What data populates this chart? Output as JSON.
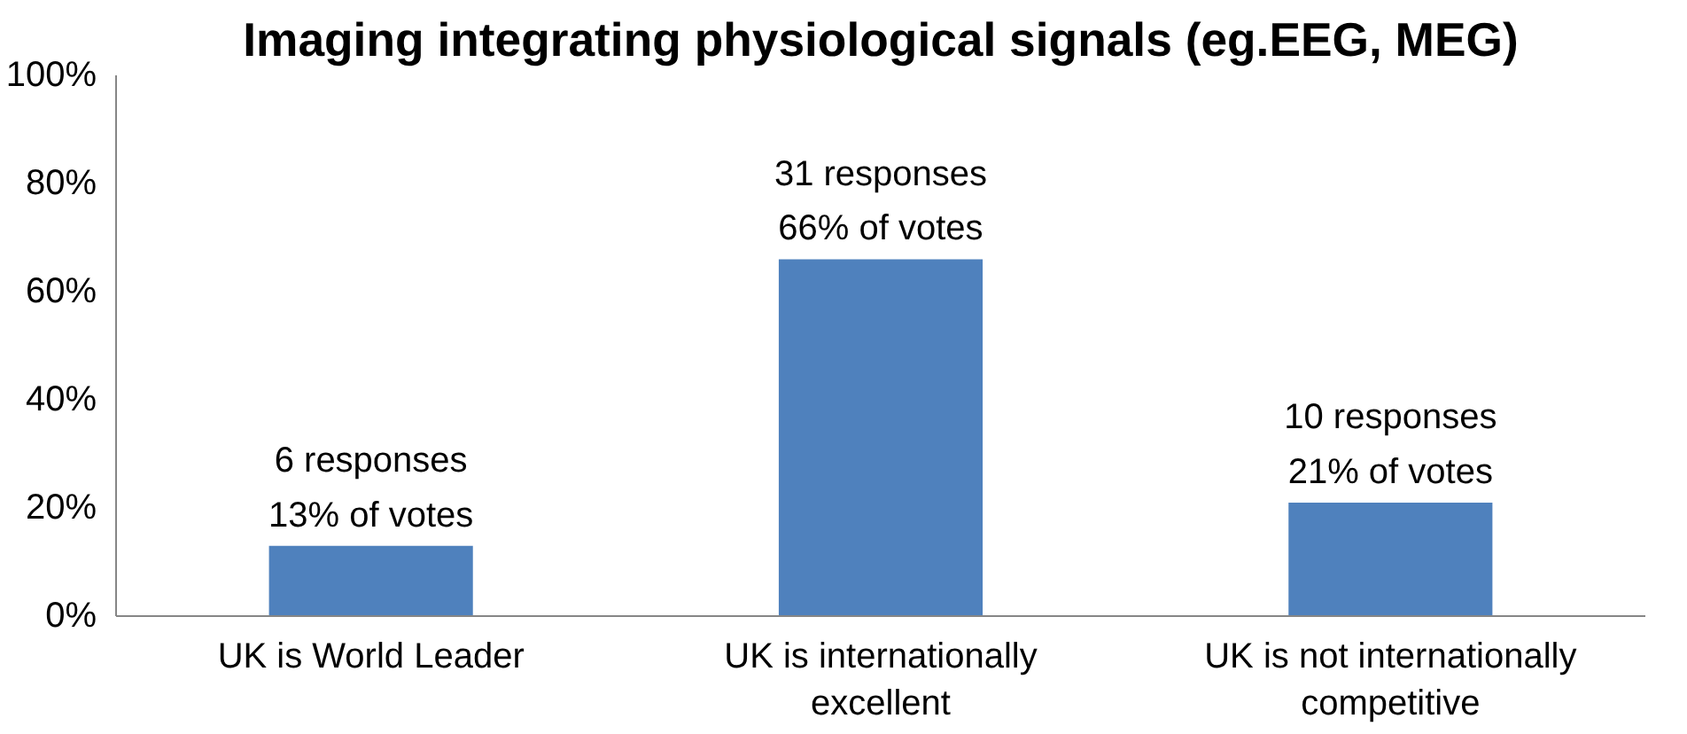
{
  "chart_data": {
    "type": "bar",
    "title": "Imaging integrating physiological signals (eg.EEG, MEG)",
    "categories": [
      "UK is World Leader",
      "UK is internationally excellent",
      "UK is not internationally competitive"
    ],
    "values": [
      13,
      66,
      21
    ],
    "color": "#4f81bd",
    "value_labels": [
      "6 responses\n13% of votes",
      "31 responses\n66% of votes",
      "10 responses\n21% of votes"
    ],
    "ylim": [
      0,
      100
    ],
    "yticks": [
      {
        "value": 0,
        "label": "0%"
      },
      {
        "value": 20,
        "label": "20%"
      },
      {
        "value": 40,
        "label": "40%"
      },
      {
        "value": 60,
        "label": "60%"
      },
      {
        "value": 80,
        "label": "80%"
      },
      {
        "value": 100,
        "label": "100%"
      }
    ],
    "grid": false
  }
}
